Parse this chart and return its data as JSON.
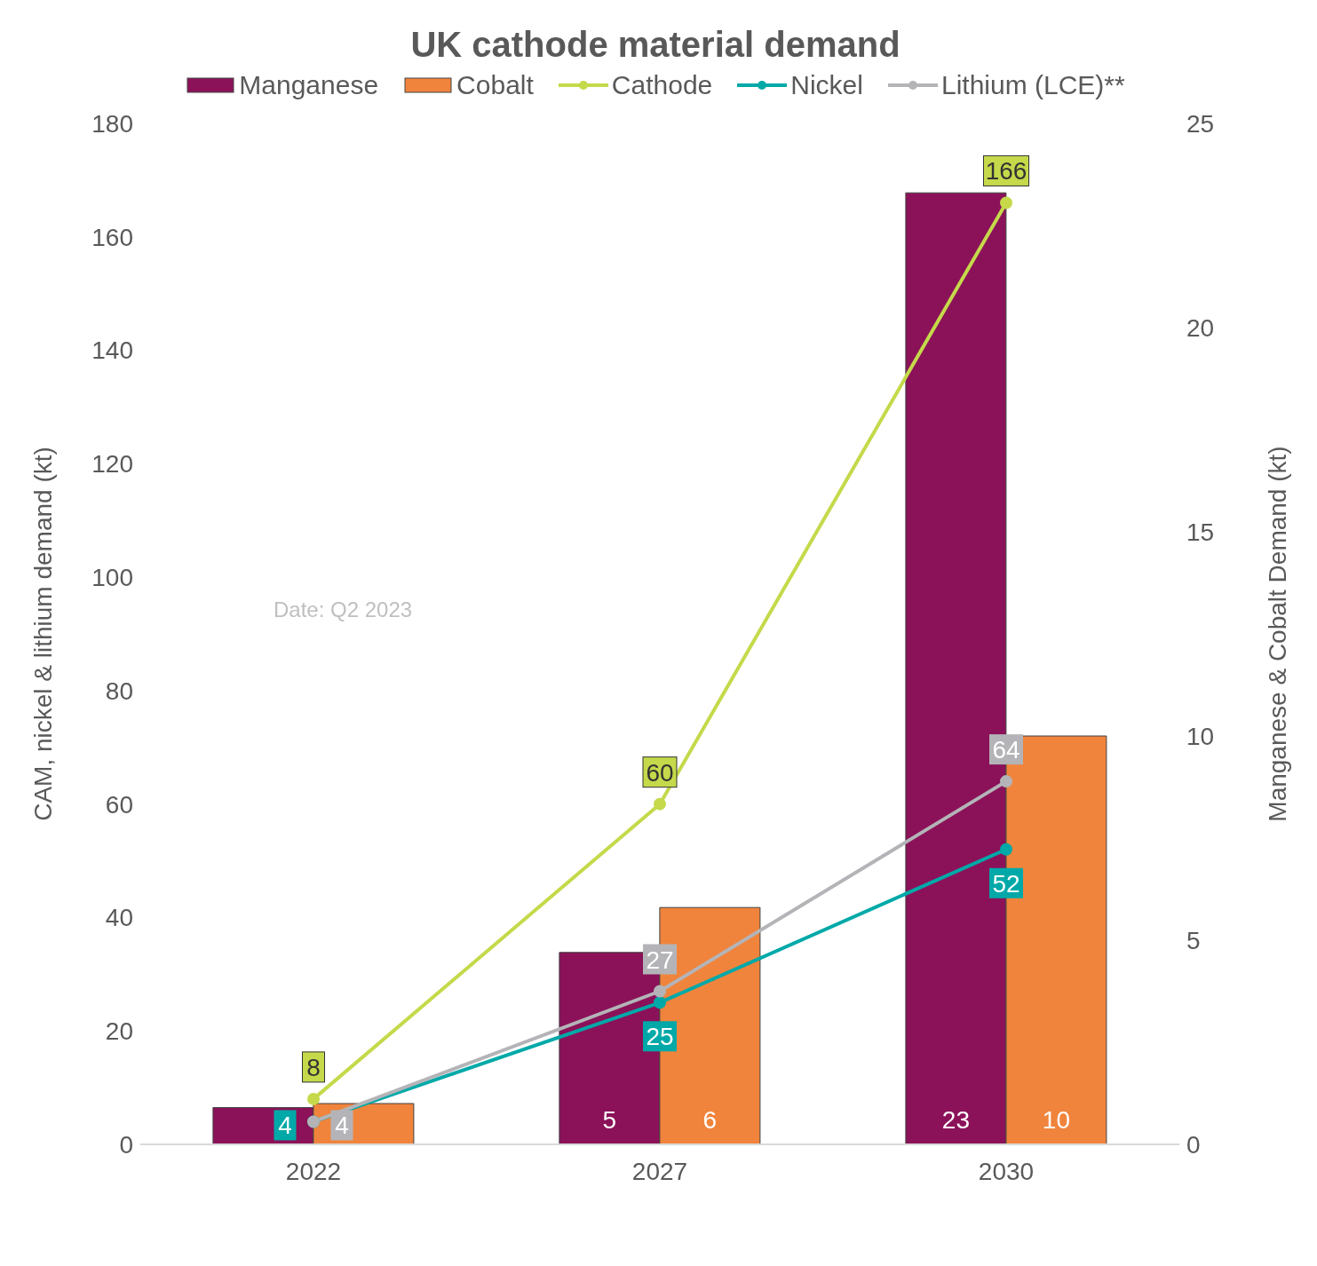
{
  "chart_data": {
    "type": "bar",
    "title": "UK cathode material demand",
    "categories": [
      "2022",
      "2027",
      "2030"
    ],
    "series": [
      {
        "name": "Manganese",
        "axis": "y2",
        "color": "#8b1259",
        "values": [
          0.9,
          4.7,
          23.3
        ],
        "value_labels": [
          null,
          "5",
          "23"
        ]
      },
      {
        "name": "Cobalt",
        "axis": "y2",
        "color": "#f0843c",
        "values": [
          1.0,
          5.8,
          10.0
        ],
        "value_labels": [
          null,
          "6",
          "10"
        ]
      },
      {
        "name": "Cathode",
        "type": "line",
        "color": "#c5d94a",
        "values": [
          8,
          60,
          166
        ],
        "data_labels": true
      },
      {
        "name": "Nickel",
        "type": "line",
        "color": "#00a9a8",
        "values": [
          4,
          25,
          52
        ],
        "data_labels": true
      },
      {
        "name": "Lithium (LCE)**",
        "type": "line",
        "color": "#b4b4b8",
        "values": [
          4,
          27,
          64
        ],
        "data_labels": true
      }
    ],
    "ylabel": "CAM, nickel & lithium demand (kt)",
    "y2label": "Manganese & Cobalt Demand (kt)",
    "ylim": [
      0,
      180
    ],
    "yticks": [
      0,
      20,
      40,
      60,
      80,
      100,
      120,
      140,
      160,
      180
    ],
    "y2lim": [
      0,
      25
    ],
    "y2ticks": [
      0,
      5,
      10,
      15,
      20,
      25
    ],
    "grid": false,
    "legend": "top",
    "marker": "circle",
    "line_style": "solid",
    "annotations": [
      "Date: Q2 2023"
    ]
  }
}
